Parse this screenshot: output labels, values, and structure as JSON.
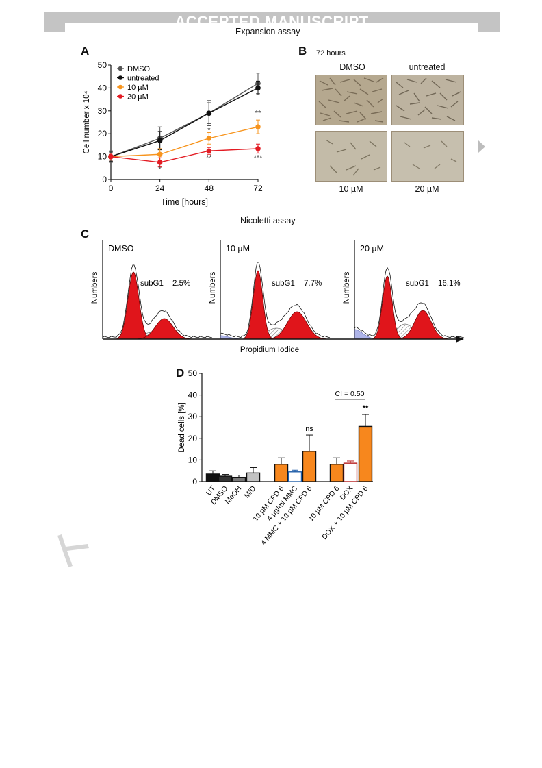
{
  "banner": {
    "text": "ACCEPTED MANUSCRIPT"
  },
  "sections": {
    "expansion_title": "Expansion assay",
    "nicoletti_title": "Nicoletti assay"
  },
  "panels": {
    "a": "A",
    "b": "B",
    "c": "C",
    "d": "D"
  },
  "photos": {
    "timepoint": "72 hours",
    "col_dmso": "DMSO",
    "col_untreated": "untreated",
    "cap_10": "10 µM",
    "cap_20": "20 µM"
  },
  "colors": {
    "dmso": "#555555",
    "untreated": "#111111",
    "uM10": "#f7941d",
    "uM20": "#e31b23",
    "flow_red": "#e0151b",
    "flow_blue": "#aeb4e8",
    "bar_orange": "#f7871d"
  },
  "chart_data": [
    {
      "id": "panel-a",
      "type": "line",
      "xlabel": "Time [hours]",
      "ylabel": "Cell number x 10⁴",
      "x": [
        0,
        24,
        48,
        72
      ],
      "xlim": [
        0,
        72
      ],
      "ylim": [
        0,
        50
      ],
      "xticks": [
        "0",
        "24",
        "48",
        "72"
      ],
      "yticks": [
        "0",
        "10",
        "20",
        "30",
        "40",
        "50"
      ],
      "legend_position": "top-left",
      "series": [
        {
          "name": "DMSO",
          "color": "#555555",
          "values": [
            10,
            18,
            29,
            42
          ],
          "errors": [
            2.5,
            5,
            5.5,
            4.5
          ]
        },
        {
          "name": "untreated",
          "color": "#111111",
          "values": [
            10,
            17,
            29,
            40
          ],
          "errors": [
            2,
            4,
            4.5,
            3
          ]
        },
        {
          "name": "10 µM",
          "color": "#f7941d",
          "values": [
            10,
            11,
            18,
            23
          ],
          "errors": [
            1.5,
            2.5,
            2.5,
            3
          ]
        },
        {
          "name": "20 µM",
          "color": "#e31b23",
          "values": [
            10,
            7.5,
            12.5,
            13.5
          ],
          "errors": [
            1.5,
            2,
            1.5,
            2
          ]
        }
      ],
      "annotations": [
        {
          "x": 24,
          "y": 3.5,
          "text": "*"
        },
        {
          "x": 48,
          "y": 20.5,
          "text": "*"
        },
        {
          "x": 48,
          "y": 8.5,
          "text": "**"
        },
        {
          "x": 72,
          "y": 28,
          "text": "**"
        },
        {
          "x": 72,
          "y": 8.5,
          "text": "***"
        }
      ]
    },
    {
      "id": "panel-c",
      "type": "area",
      "xlabel": "Propidium Iodide",
      "ylabel": "Numbers",
      "histograms": [
        {
          "name": "DMSO",
          "subG1": "subG1 = 2.5%"
        },
        {
          "name": "10 µM",
          "subG1": "subG1 = 7.7%"
        },
        {
          "name": "20 µM",
          "subG1": "subG1 = 16.1%"
        }
      ]
    },
    {
      "id": "panel-d",
      "type": "bar",
      "ylabel": "Dead cells [%]",
      "ylim": [
        0,
        50
      ],
      "yticks": [
        "0",
        "10",
        "20",
        "30",
        "40",
        "50"
      ],
      "categories": [
        "UT",
        "DMSO",
        "MeOH",
        "M/D",
        "10 µM CPD 6",
        "4 µg/ml MMC",
        "4 MMC + 10 µM CPD 6",
        "10 µM CPD 6",
        "DOX",
        "DOX + 10 µM CPD 6"
      ],
      "values": [
        3.5,
        2.5,
        2,
        4,
        8,
        4.5,
        14,
        8,
        8.5,
        25.5
      ],
      "errors": [
        1.5,
        0.8,
        1,
        2.5,
        3,
        0.8,
        7.5,
        3,
        1,
        5.5
      ],
      "fills": [
        "#111111",
        "#333333",
        "#777777",
        "#c2c2c2",
        "#f7871d",
        "#ffffff",
        "#f7871d",
        "#f7871d",
        "#ffffff",
        "#f7871d"
      ],
      "strokes": [
        "#111111",
        "#111111",
        "#111111",
        "#111111",
        "#111111",
        "#1f5da8",
        "#111111",
        "#111111",
        "#b71c1c",
        "#111111"
      ],
      "annotations": [
        {
          "bar": 6,
          "text": "ns"
        },
        {
          "bar": 9,
          "text": "**"
        }
      ],
      "bracket": {
        "from": 7,
        "to": 9,
        "text": "CI = 0.50"
      }
    }
  ]
}
